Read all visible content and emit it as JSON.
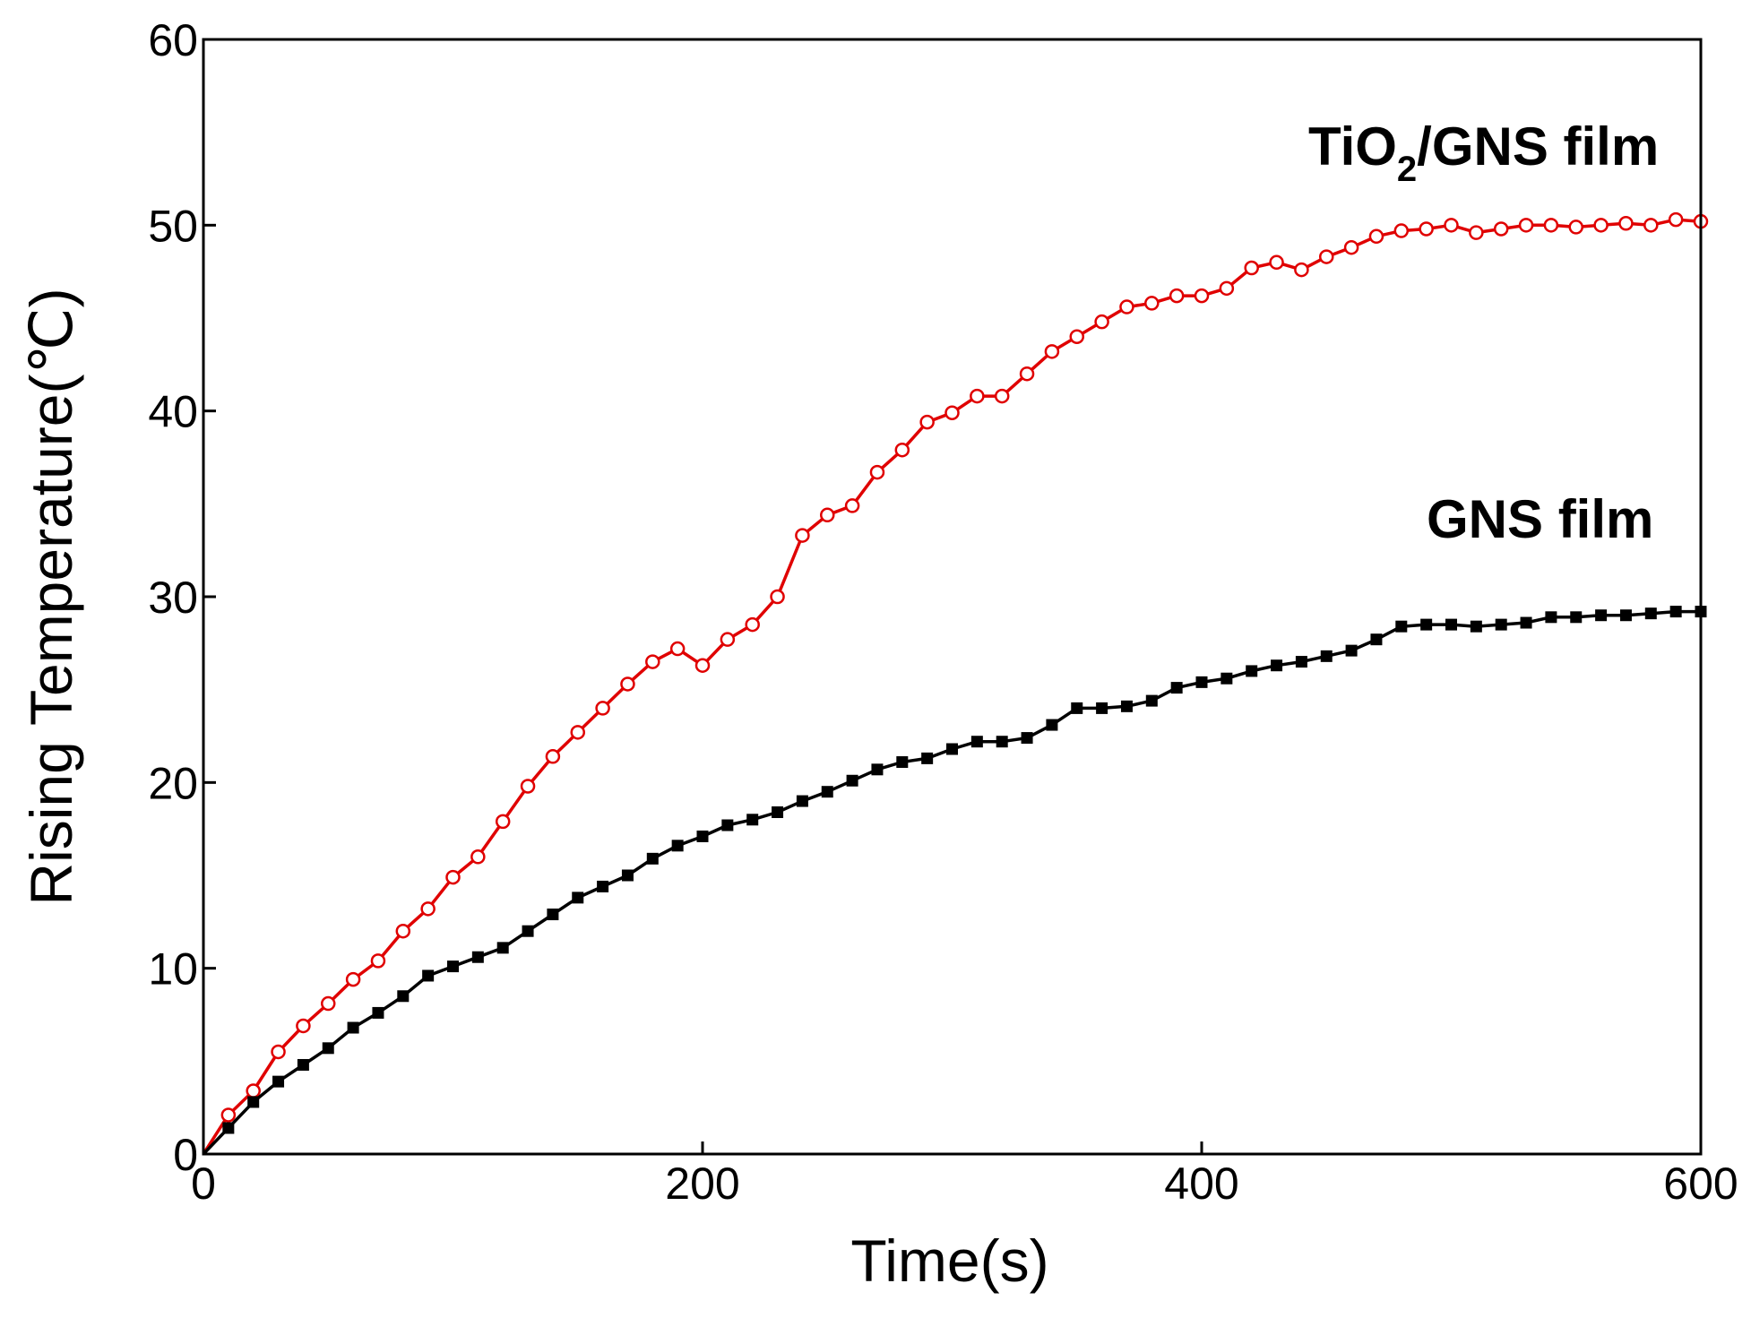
{
  "chart_data": {
    "type": "line",
    "title": "",
    "xlabel": "Time(s)",
    "ylabel": "Rising Temperature(℃)",
    "xlim": [
      0,
      600
    ],
    "ylim": [
      0,
      60
    ],
    "xticks": [
      0,
      200,
      400,
      600
    ],
    "yticks": [
      0,
      10,
      20,
      30,
      40,
      50,
      60
    ],
    "grid": false,
    "legend": "inline labels near series ends",
    "series": [
      {
        "name": "TiO2/GNS film",
        "label_parts": {
          "main": "TiO",
          "sub": "2",
          "rest": "/GNS film"
        },
        "color": "#e00000",
        "marker": "open-circle",
        "x": [
          0,
          10,
          20,
          30,
          40,
          50,
          60,
          70,
          80,
          90,
          100,
          110,
          120,
          130,
          140,
          150,
          160,
          170,
          180,
          190,
          200,
          210,
          220,
          230,
          240,
          250,
          260,
          270,
          280,
          290,
          300,
          310,
          320,
          330,
          340,
          350,
          360,
          370,
          380,
          390,
          400,
          410,
          420,
          430,
          440,
          450,
          460,
          470,
          480,
          490,
          500,
          510,
          520,
          530,
          540,
          550,
          560,
          570,
          580,
          590,
          600
        ],
        "y": [
          0,
          2.1,
          3.4,
          5.5,
          6.9,
          8.1,
          9.4,
          10.4,
          12.0,
          13.2,
          14.9,
          16.0,
          17.9,
          19.8,
          21.4,
          22.7,
          24.0,
          25.3,
          26.5,
          27.2,
          26.3,
          27.7,
          28.5,
          30.0,
          33.3,
          34.4,
          34.9,
          36.7,
          37.9,
          39.4,
          39.9,
          40.8,
          40.8,
          42.0,
          43.2,
          44.0,
          44.8,
          45.6,
          45.8,
          46.2,
          46.2,
          46.6,
          47.7,
          48.0,
          47.6,
          48.3,
          48.8,
          49.4,
          49.7,
          49.8,
          50.0,
          49.6,
          49.8,
          50.0,
          50.0,
          49.9,
          50.0,
          50.1,
          50.0,
          50.3,
          50.2
        ]
      },
      {
        "name": "GNS film",
        "color": "#000000",
        "marker": "filled-square",
        "x": [
          0,
          10,
          20,
          30,
          40,
          50,
          60,
          70,
          80,
          90,
          100,
          110,
          120,
          130,
          140,
          150,
          160,
          170,
          180,
          190,
          200,
          210,
          220,
          230,
          240,
          250,
          260,
          270,
          280,
          290,
          300,
          310,
          320,
          330,
          340,
          350,
          360,
          370,
          380,
          390,
          400,
          410,
          420,
          430,
          440,
          450,
          460,
          470,
          480,
          490,
          500,
          510,
          520,
          530,
          540,
          550,
          560,
          570,
          580,
          590,
          600
        ],
        "y": [
          0,
          1.4,
          2.8,
          3.9,
          4.8,
          5.7,
          6.8,
          7.6,
          8.5,
          9.6,
          10.1,
          10.6,
          11.1,
          12.0,
          12.9,
          13.8,
          14.4,
          15.0,
          15.9,
          16.6,
          17.1,
          17.7,
          18.0,
          18.4,
          19.0,
          19.5,
          20.1,
          20.7,
          21.1,
          21.3,
          21.8,
          22.2,
          22.2,
          22.4,
          23.1,
          24.0,
          24.0,
          24.1,
          24.4,
          25.1,
          25.4,
          25.6,
          26.0,
          26.3,
          26.5,
          26.8,
          27.1,
          27.7,
          28.4,
          28.5,
          28.5,
          28.4,
          28.5,
          28.6,
          28.9,
          28.9,
          29.0,
          29.0,
          29.1,
          29.2,
          29.2
        ]
      }
    ]
  }
}
